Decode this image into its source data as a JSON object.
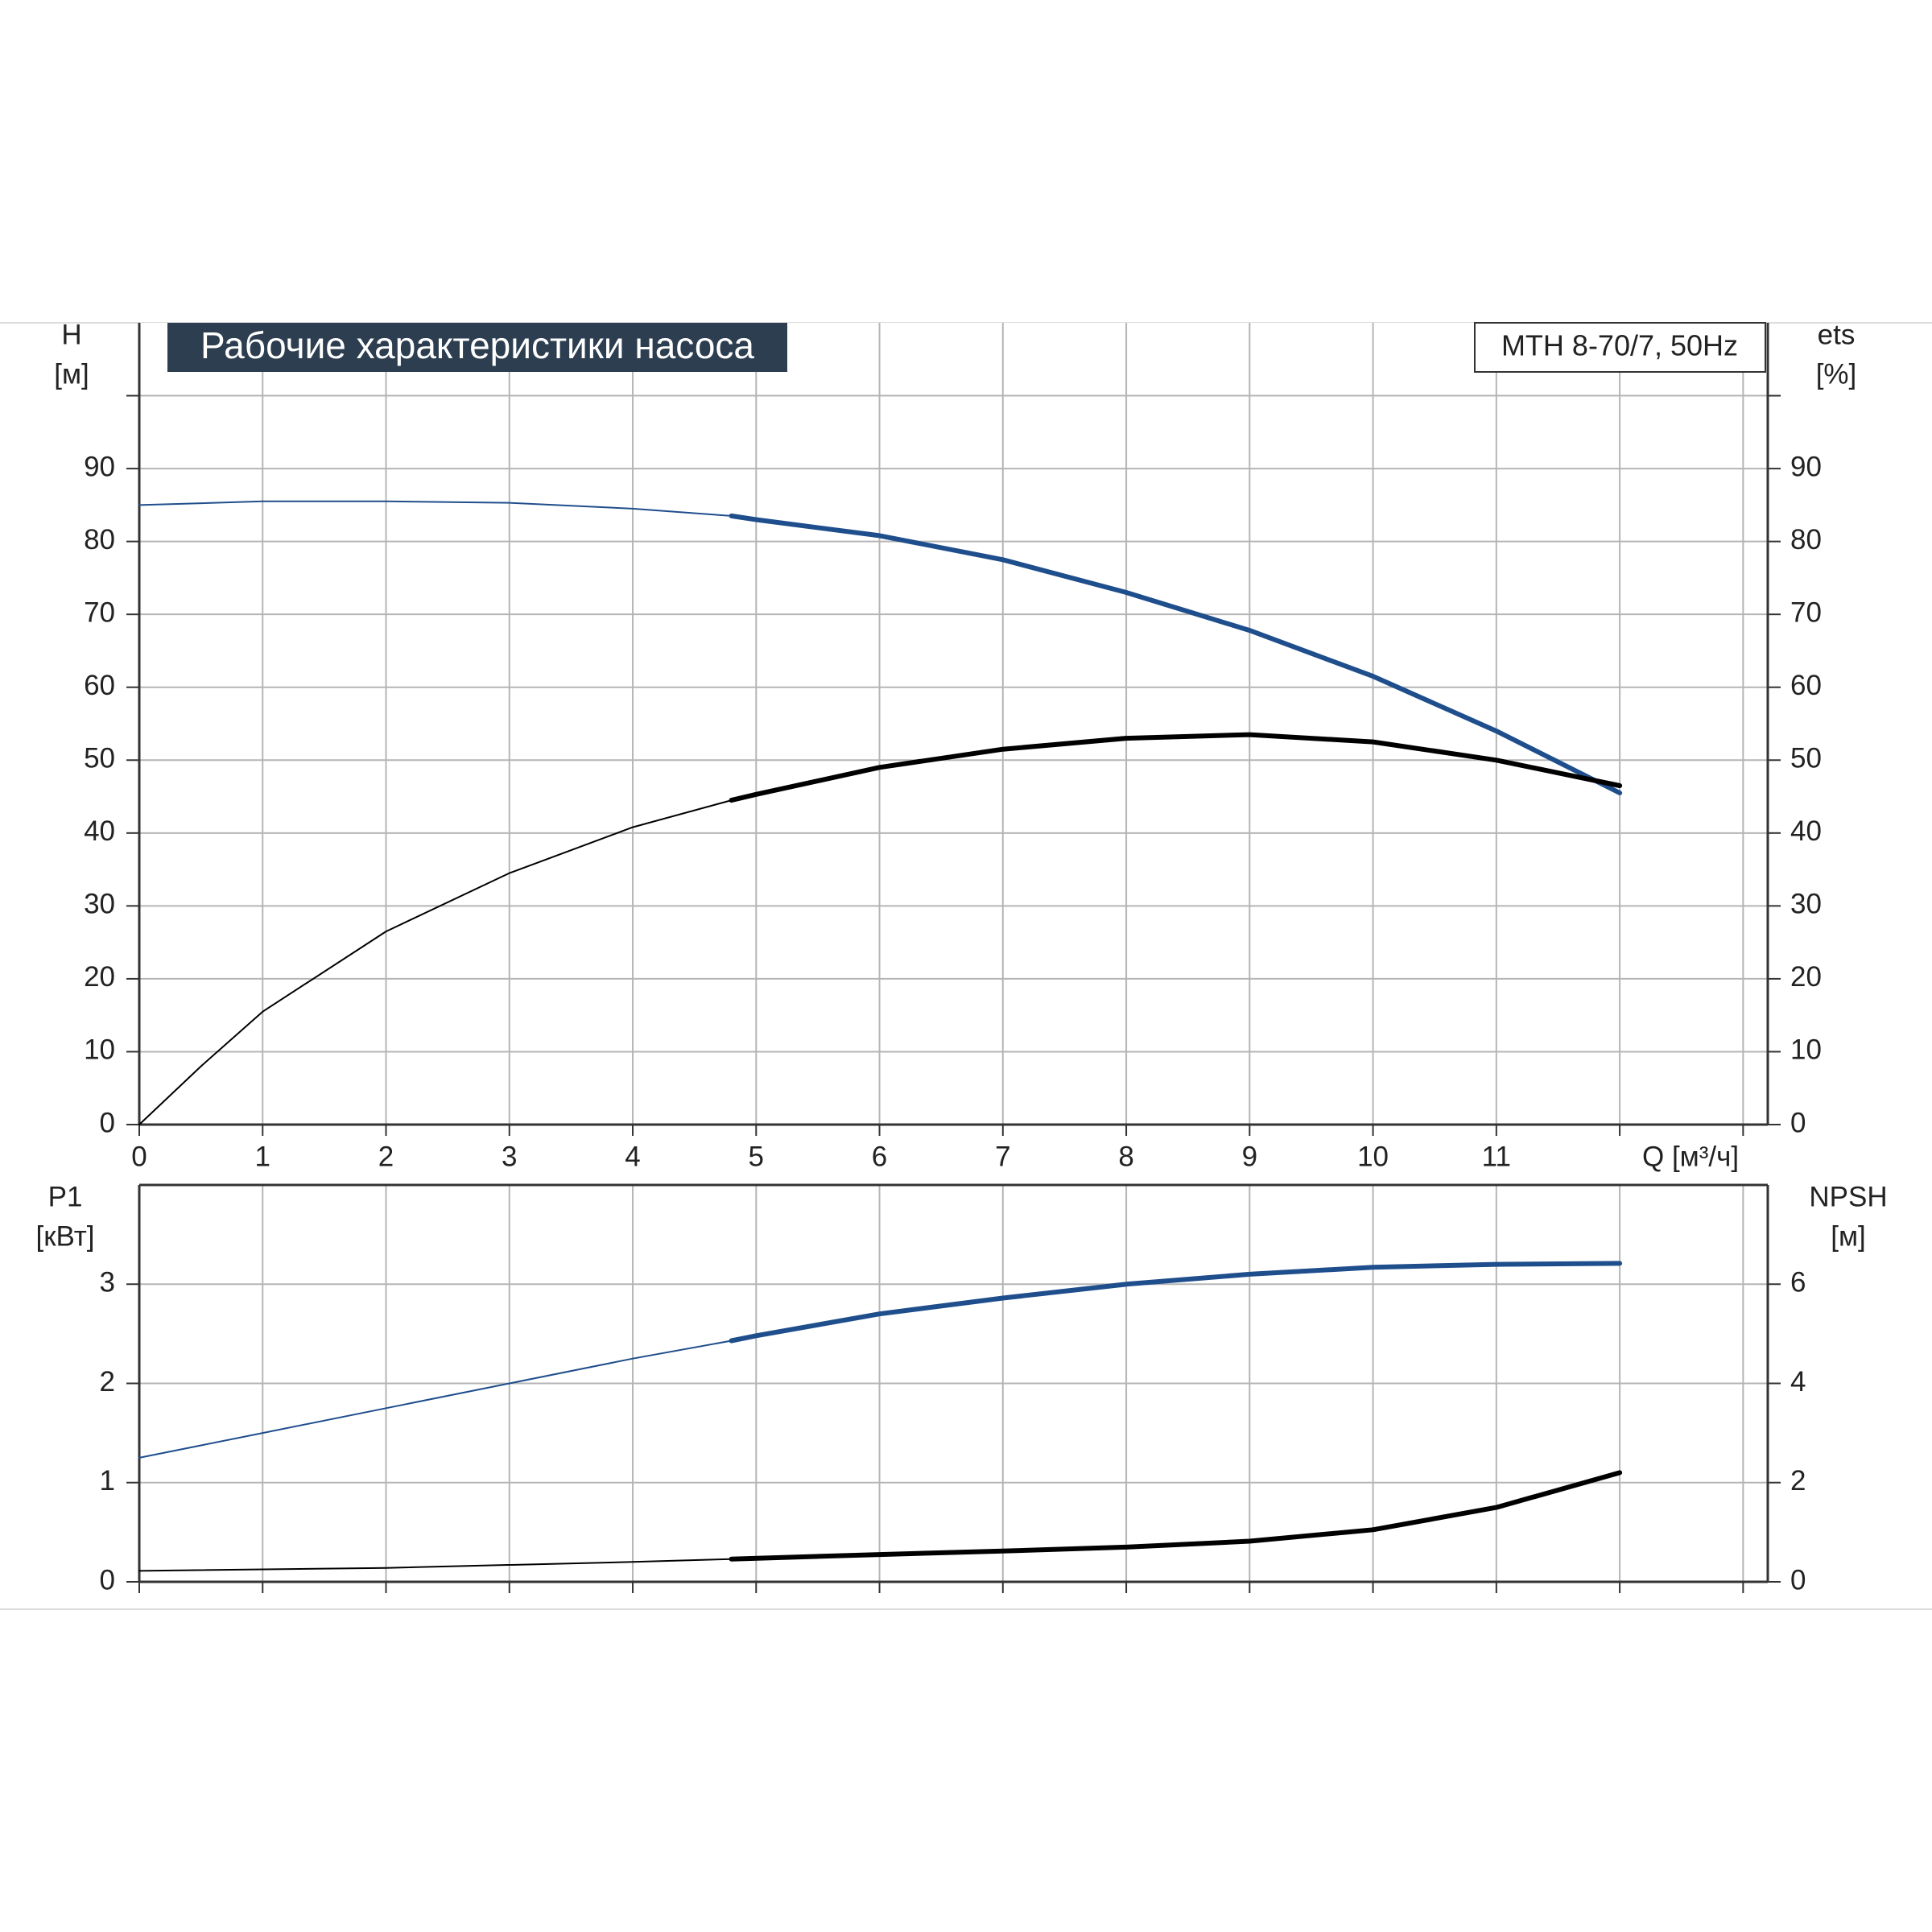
{
  "chart_data": [
    {
      "type": "line",
      "title": "Рабочие характеристики насоса",
      "model": "MTH 8-70/7, 50Hz",
      "ylabel": "H",
      "yunit": "[м]",
      "y2label": "ets",
      "y2unit": "[%]",
      "xlabel": "Q [м³/ч]",
      "grid": true,
      "bold_from": 4.8,
      "xlim": [
        0,
        13.2
      ],
      "xticks": [
        0,
        1,
        2,
        3,
        4,
        5,
        6,
        7,
        8,
        9,
        10,
        11,
        {
          "value": 12,
          "label": null
        },
        {
          "value": 13,
          "label": null
        }
      ],
      "ylim": [
        0,
        110
      ],
      "yticks": [
        0,
        10,
        20,
        30,
        40,
        50,
        60,
        70,
        80,
        90,
        {
          "value": 100,
          "label": null
        }
      ],
      "y2lim": [
        0,
        110
      ],
      "y2ticks": [
        0,
        10,
        20,
        30,
        40,
        50,
        60,
        70,
        80,
        90,
        {
          "value": 100,
          "label": null
        }
      ],
      "series": [
        {
          "name": "H",
          "color": "#1f4e8c",
          "axis": "y",
          "x": [
            0,
            1,
            2,
            3,
            4,
            4.8,
            5,
            6,
            7,
            8,
            9,
            10,
            11,
            12
          ],
          "values": [
            85,
            85.5,
            85.5,
            85.3,
            84.5,
            83.5,
            83,
            80.8,
            77.5,
            73,
            67.8,
            61.5,
            54,
            45.5
          ]
        },
        {
          "name": "ets",
          "color": "#000000",
          "axis": "y2",
          "x": [
            0,
            0.5,
            1,
            2,
            3,
            4,
            4.8,
            5,
            6,
            7,
            8,
            9,
            10,
            11,
            12
          ],
          "values": [
            0,
            8,
            15.5,
            26.5,
            34.5,
            40.8,
            44.5,
            45.3,
            49,
            51.5,
            53,
            53.5,
            52.5,
            50,
            46.5
          ]
        }
      ]
    },
    {
      "type": "line",
      "ylabel": "P1",
      "yunit": "[кВт]",
      "y2label": "NPSH",
      "y2unit": "[м]",
      "grid": true,
      "bold_from": 4.8,
      "xlim": [
        0,
        13.2
      ],
      "xticks": [
        {
          "value": 0,
          "label": null
        },
        {
          "value": 1,
          "label": null
        },
        {
          "value": 2,
          "label": null
        },
        {
          "value": 3,
          "label": null
        },
        {
          "value": 4,
          "label": null
        },
        {
          "value": 5,
          "label": null
        },
        {
          "value": 6,
          "label": null
        },
        {
          "value": 7,
          "label": null
        },
        {
          "value": 8,
          "label": null
        },
        {
          "value": 9,
          "label": null
        },
        {
          "value": 10,
          "label": null
        },
        {
          "value": 11,
          "label": null
        },
        {
          "value": 12,
          "label": null
        },
        {
          "value": 13,
          "label": null
        }
      ],
      "ylim": [
        0,
        4
      ],
      "yticks": [
        0,
        1,
        2,
        3
      ],
      "y2lim": [
        0,
        8
      ],
      "y2ticks": [
        0,
        2,
        4,
        6
      ],
      "series": [
        {
          "name": "P1",
          "color": "#1f4e8c",
          "axis": "y",
          "x": [
            0,
            1,
            2,
            3,
            4,
            4.8,
            5,
            6,
            7,
            8,
            9,
            10,
            11,
            12
          ],
          "values": [
            1.25,
            1.5,
            1.75,
            2.0,
            2.25,
            2.43,
            2.48,
            2.7,
            2.86,
            3.0,
            3.1,
            3.17,
            3.2,
            3.21
          ]
        },
        {
          "name": "NPSH",
          "color": "#000000",
          "axis": "y2",
          "x": [
            0,
            2,
            4,
            4.8,
            6,
            7,
            8,
            9,
            10,
            11,
            12
          ],
          "values": [
            0.22,
            0.28,
            0.4,
            0.46,
            0.55,
            0.62,
            0.7,
            0.82,
            1.05,
            1.5,
            2.2
          ]
        }
      ]
    }
  ]
}
